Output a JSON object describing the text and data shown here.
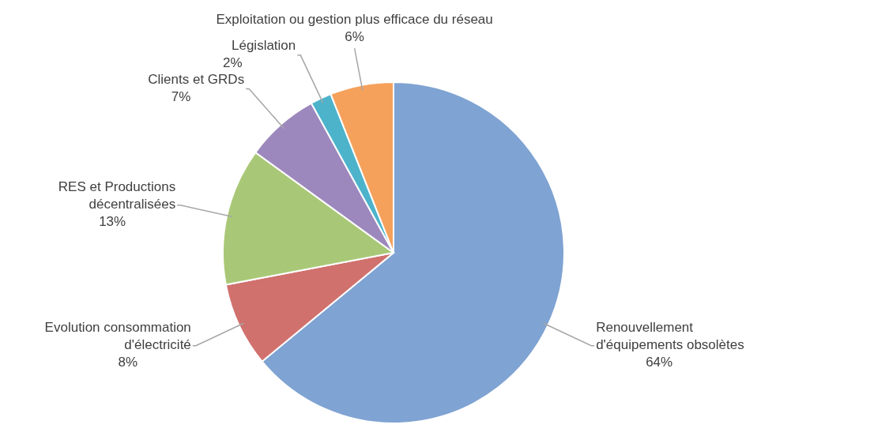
{
  "chart_data": {
    "type": "pie",
    "categories": [
      "Renouvellement d'équipements obsolètes",
      "Evolution consommation d'électricité",
      "RES et Productions décentralisées",
      "Clients et GRDs",
      "Législation",
      "Exploitation ou gestion plus efficace du réseau"
    ],
    "values": [
      64,
      8,
      13,
      7,
      2,
      6
    ],
    "value_labels": [
      "64%",
      "8%",
      "13%",
      "7%",
      "2%",
      "6%"
    ],
    "colors": [
      "#7fa3d2",
      "#d0716e",
      "#a9c877",
      "#9d88bd",
      "#4db3cb",
      "#f5a15c"
    ]
  }
}
